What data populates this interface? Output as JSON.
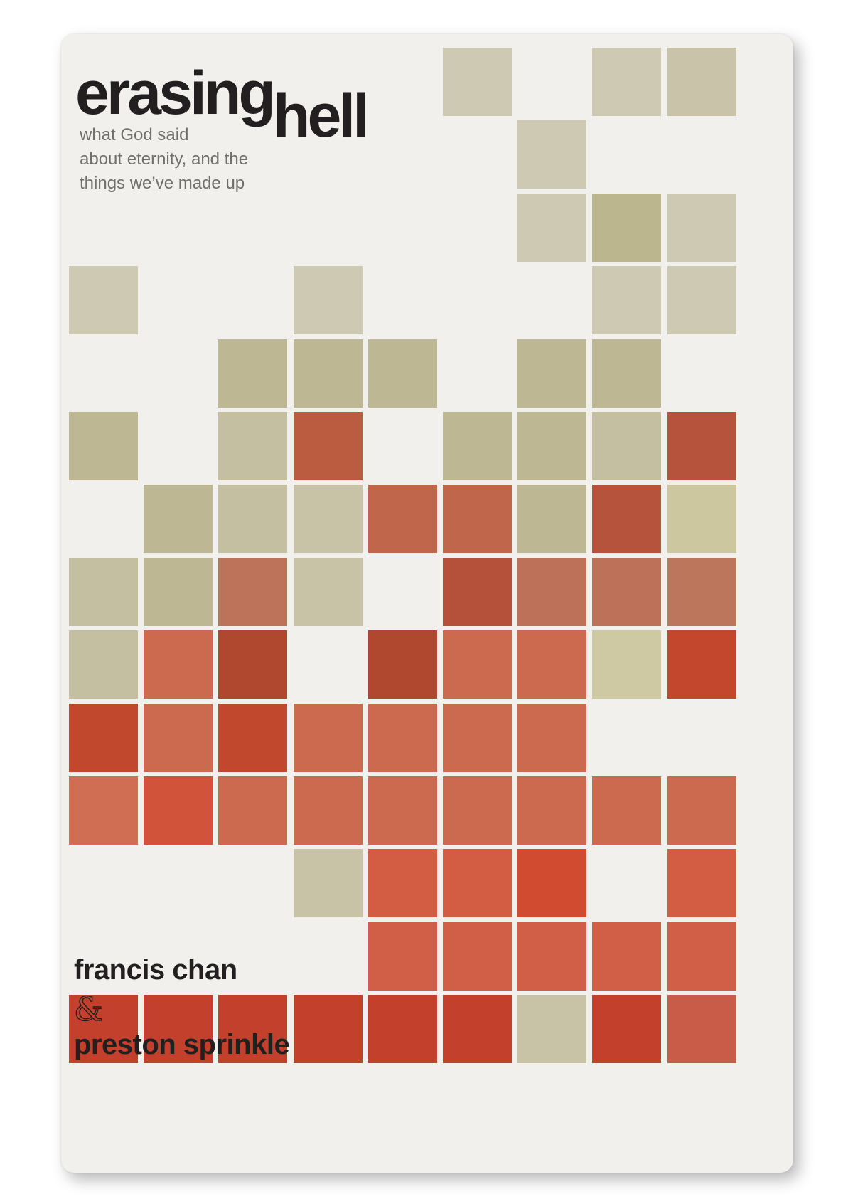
{
  "cover": {
    "title_part1": "erasing",
    "title_part2": "hell",
    "subtitle_lines": [
      "what God said",
      "about eternity, and the",
      "things we’ve made up"
    ],
    "author1": "francis chan",
    "ampersand": "&",
    "author2": "preston sprinkle"
  },
  "palette": {
    "background": "#f1f0ec",
    "title_text": "#231f20",
    "subtitle_text": "#6f6f6f",
    "tan": "#cdc9b2",
    "khaki": "#bdb793",
    "terracotta": "#ca6b4f",
    "red": "#c2472c"
  },
  "grid_tiles": [
    [
      null,
      null,
      null,
      null,
      null,
      "#cdc9b2",
      null,
      "#cdc9b2",
      "#c9c4a9"
    ],
    [
      null,
      null,
      null,
      null,
      null,
      null,
      "#cdc9b2",
      null,
      null
    ],
    [
      null,
      null,
      null,
      null,
      null,
      null,
      "#cdc9b2",
      "#bcb68f",
      "#cdc9b2"
    ],
    [
      "#cdc9b2",
      null,
      null,
      "#cdc9b2",
      null,
      null,
      null,
      "#cdc9b2",
      "#cdc9b2"
    ],
    [
      null,
      null,
      "#bdb793",
      "#bdb793",
      "#bdb793",
      null,
      "#bdb793",
      "#bdb793",
      null
    ],
    [
      "#bdb793",
      null,
      "#c4bfa1",
      "#bb5c41",
      null,
      "#bdb793",
      "#bdb793",
      "#c4bfa1",
      "#b6533d"
    ],
    [
      null,
      "#bdb793",
      "#c4bfa1",
      "#c8c3a6",
      "#c0664b",
      "#c0664b",
      "#bdb793",
      "#b6533d",
      "#ccc79f"
    ],
    [
      "#c4bfa1",
      "#bdb793",
      "#bd735a",
      "#c8c3a6",
      null,
      "#b5503a",
      "#be7159",
      "#be7159",
      "#bb765c"
    ],
    [
      "#c4bfa1",
      "#cb6a4f",
      "#b0472f",
      null,
      "#b0472f",
      "#cb6a4f",
      "#cb6a4f",
      "#cec9a2",
      "#c2472c"
    ],
    [
      "#c2482d",
      "#cb6a4f",
      "#c2482d",
      "#cb6a4f",
      "#cb6a4f",
      "#cb6a4f",
      "#cb6a4f",
      null,
      null
    ],
    [
      "#cf6e53",
      "#d1533a",
      "#cb6a4f",
      "#cb6a4f",
      "#cb6a4f",
      "#cb6a4f",
      "#cb6a4f",
      "#cb6a4f",
      "#cb6a4f"
    ],
    [
      null,
      null,
      null,
      "#c8c3a6",
      "#d25d43",
      "#d25d43",
      "#d14b30",
      null,
      "#d25d43"
    ],
    [
      null,
      null,
      null,
      null,
      "#d15e47",
      "#d15e47",
      "#d15e47",
      "#d15e47",
      "#d15e47"
    ],
    [
      "#c2402c",
      "#c2402c",
      "#c2402c",
      "#c2402c",
      "#c2402c",
      "#c2402c",
      "#c8c3a6",
      "#c2402c",
      "#c85c48"
    ]
  ]
}
